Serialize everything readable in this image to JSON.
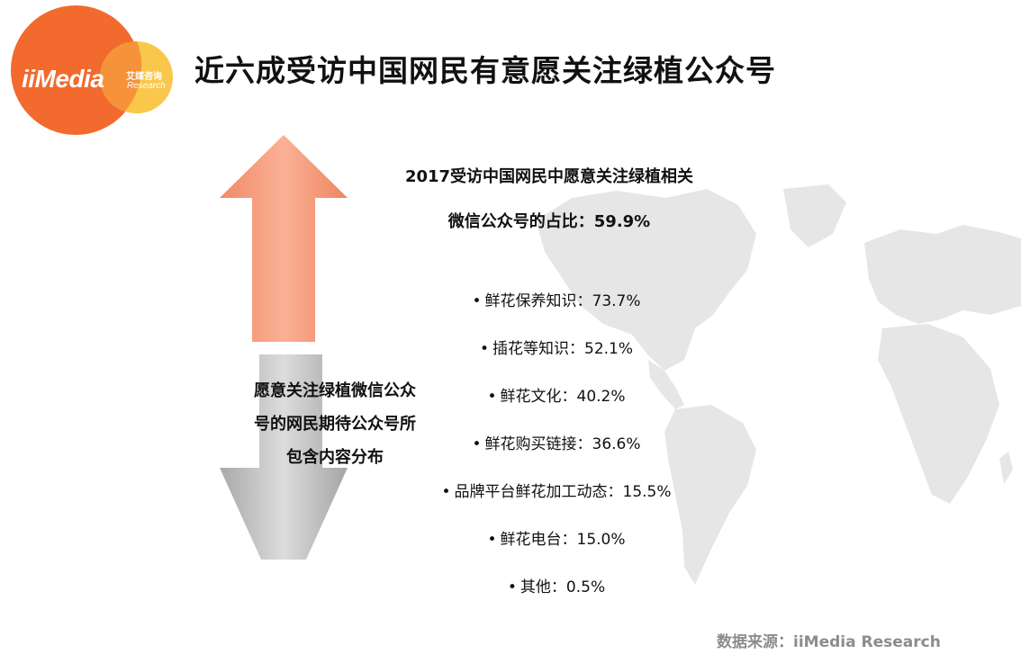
{
  "logo": {
    "brand": "iiMedia",
    "cn": "艾媒咨询",
    "en": "Research"
  },
  "title": "近六成受访中国网民有意愿关注绿植公众号",
  "headline": {
    "line1": "2017受访中国网民中愿意关注绿植相关",
    "line2": "微信公众号的占比：59.9%"
  },
  "side_label": {
    "line1": "愿意关注绿植微信公众",
    "line2": "号的网民期待公众号所",
    "line3": "包含内容分布"
  },
  "items": [
    {
      "text": "鲜花保养知识：73.7%"
    },
    {
      "text": "插花等知识：52.1%"
    },
    {
      "text": "鲜花文化：40.2%"
    },
    {
      "text": "鲜花购买链接：36.6%"
    },
    {
      "text": "品牌平台鲜花加工动态：15.5%"
    },
    {
      "text": "鲜花电台：15.0%"
    },
    {
      "text": "其他：0.5%"
    }
  ],
  "bullet": "•",
  "source": "数据来源：iiMedia Research",
  "colors": {
    "orange": "#f26a2e",
    "yellow": "#f9c440",
    "arrow_up": "#f79a78",
    "arrow_down": "#bdbdbd",
    "map": "#e6e6e6"
  }
}
